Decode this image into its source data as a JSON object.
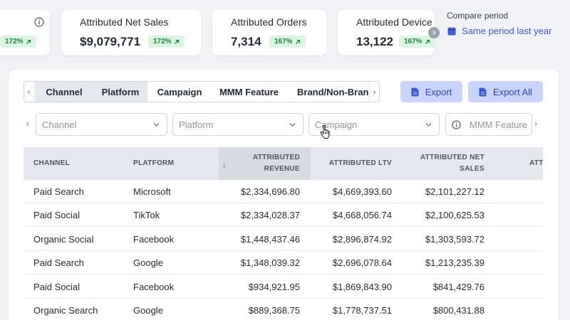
{
  "kpis": [
    {
      "label": "",
      "value": "",
      "change": "172%"
    },
    {
      "label": "Attributed Net Sales",
      "value": "$9,079,771",
      "change": "172%"
    },
    {
      "label": "Attributed Orders",
      "value": "7,314",
      "change": "167%"
    },
    {
      "label": "Attributed Device",
      "value": "13,122",
      "change": "167%"
    }
  ],
  "compare": {
    "label": "Compare period",
    "value": "Same period last year"
  },
  "tabs": [
    "Channel",
    "Platform",
    "Campaign",
    "MMM Feature",
    "Brand/Non-Bran"
  ],
  "selected_tabs": [
    "Channel",
    "Platform"
  ],
  "buttons": {
    "export": "Export",
    "export_all": "Export All"
  },
  "filters": [
    "Channel",
    "Platform",
    "Campaign",
    "MMM Feature"
  ],
  "table": {
    "columns": [
      {
        "label": "CHANNEL"
      },
      {
        "label": "PLATFORM"
      },
      {
        "label": "ATTRIBUTED REVENUE",
        "line1": "ATTRIBUTED",
        "line2": "REVENUE",
        "sorted": "descending"
      },
      {
        "label": "ATTRIBUTED LTV"
      },
      {
        "label": "ATTRIBUTED NET SALES",
        "line1": "ATTRIBUTED NET",
        "line2": "SALES"
      },
      {
        "label": "ATT"
      }
    ],
    "sort_indicator": "↓",
    "rows": [
      [
        "Paid Search",
        "Microsoft",
        "$2,334,696.80",
        "$4,669,393.60",
        "$2,101,227.12"
      ],
      [
        "Paid Social",
        "TikTok",
        "$2,334,028.37",
        "$4,668,056.74",
        "$2,100,625.53"
      ],
      [
        "Organic Social",
        "Facebook",
        "$1,448,437.46",
        "$2,896,874.92",
        "$1,303,593.72"
      ],
      [
        "Paid Search",
        "Google",
        "$1,348,039.32",
        "$2,696,078.64",
        "$1,213,235.39"
      ],
      [
        "Paid Social",
        "Facebook",
        "$934,921.95",
        "$1,869,843.90",
        "$841,429.76"
      ],
      [
        "Organic Search",
        "Google",
        "$889,368.75",
        "$1,778,737.51",
        "$800,431.88"
      ]
    ]
  },
  "colors": {
    "accent": "#3b5bdb",
    "positive_bg": "#dcf5e3",
    "positive_text": "#15803d",
    "button_bg": "#c9d3fb"
  },
  "icons": [
    "info-icon",
    "arrow-up-right-icon",
    "calendar-icon",
    "document-icon",
    "chevron-down-icon",
    "chevron-left-icon",
    "chevron-right-icon",
    "hand-cursor-icon"
  ]
}
